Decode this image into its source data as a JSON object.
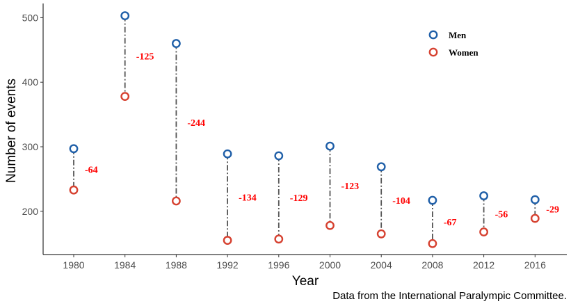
{
  "chart_data": {
    "type": "scatter",
    "xlabel": "Year",
    "ylabel": "Number of events",
    "ylim": [
      133,
      522
    ],
    "yticks": [
      200,
      300,
      400,
      500
    ],
    "categories": [
      "1980",
      "1984",
      "1988",
      "1992",
      "1996",
      "2000",
      "2004",
      "2008",
      "2012",
      "2016"
    ],
    "series": [
      {
        "name": "Men",
        "color": "#1f5fa8",
        "values": [
          297,
          503,
          460,
          289,
          286,
          301,
          269,
          217,
          224,
          218
        ]
      },
      {
        "name": "Women",
        "color": "#d64130",
        "values": [
          233,
          378,
          216,
          155,
          157,
          178,
          165,
          150,
          168,
          189
        ]
      }
    ],
    "differences": [
      "-64",
      "-125",
      "-244",
      "-134",
      "-129",
      "-123",
      "-104",
      "-67",
      "-56",
      "-29"
    ],
    "difference_color": "#ff0000",
    "connector": "dash-dot",
    "legend_position": "top-right",
    "grid": false
  },
  "caption": "Data from the International Paralympic Committee."
}
